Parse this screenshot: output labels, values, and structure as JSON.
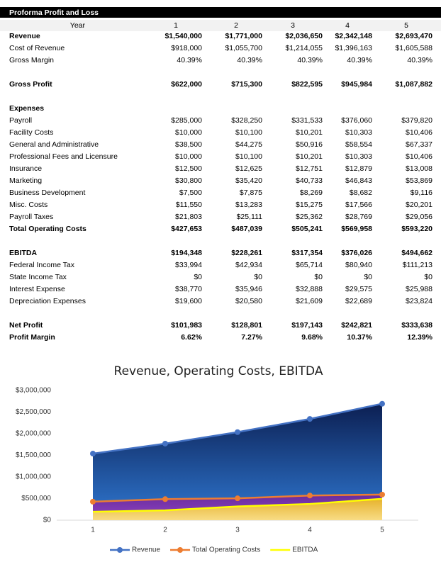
{
  "table": {
    "title": "Proforma Profit and Loss",
    "header": [
      "Year",
      "1",
      "2",
      "3",
      "4",
      "5"
    ],
    "sections": [
      {
        "rows": [
          {
            "bold": true,
            "cells": [
              "Revenue",
              "$1,540,000",
              "$1,771,000",
              "$2,036,650",
              "$2,342,148",
              "$2,693,470"
            ]
          },
          {
            "bold": false,
            "cells": [
              "Cost of Revenue",
              "$918,000",
              "$1,055,700",
              "$1,214,055",
              "$1,396,163",
              "$1,605,588"
            ]
          },
          {
            "bold": false,
            "cells": [
              "Gross Margin",
              "40.39%",
              "40.39%",
              "40.39%",
              "40.39%",
              "40.39%"
            ]
          }
        ]
      },
      {
        "rows": [
          {
            "bold": true,
            "cells": [
              "Gross Profit",
              "$622,000",
              "$715,300",
              "$822,595",
              "$945,984",
              "$1,087,882"
            ]
          }
        ]
      },
      {
        "rows": [
          {
            "bold": true,
            "cells": [
              "Expenses"
            ]
          },
          {
            "bold": false,
            "cells": [
              "Payroll",
              "$285,000",
              "$328,250",
              "$331,533",
              "$376,060",
              "$379,820"
            ]
          },
          {
            "bold": false,
            "cells": [
              "Facility Costs",
              "$10,000",
              "$10,100",
              "$10,201",
              "$10,303",
              "$10,406"
            ]
          },
          {
            "bold": false,
            "cells": [
              "General and Administrative",
              "$38,500",
              "$44,275",
              "$50,916",
              "$58,554",
              "$67,337"
            ]
          },
          {
            "bold": false,
            "cells": [
              "Professional Fees and Licensure",
              "$10,000",
              "$10,100",
              "$10,201",
              "$10,303",
              "$10,406"
            ]
          },
          {
            "bold": false,
            "cells": [
              "Insurance",
              "$12,500",
              "$12,625",
              "$12,751",
              "$12,879",
              "$13,008"
            ]
          },
          {
            "bold": false,
            "cells": [
              "Marketing",
              "$30,800",
              "$35,420",
              "$40,733",
              "$46,843",
              "$53,869"
            ]
          },
          {
            "bold": false,
            "cells": [
              "Business Development",
              "$7,500",
              "$7,875",
              "$8,269",
              "$8,682",
              "$9,116"
            ]
          },
          {
            "bold": false,
            "cells": [
              "Misc. Costs",
              "$11,550",
              "$13,283",
              "$15,275",
              "$17,566",
              "$20,201"
            ]
          },
          {
            "bold": false,
            "cells": [
              "Payroll Taxes",
              "$21,803",
              "$25,111",
              "$25,362",
              "$28,769",
              "$29,056"
            ]
          },
          {
            "bold": true,
            "cells": [
              "Total Operating Costs",
              "$427,653",
              "$487,039",
              "$505,241",
              "$569,958",
              "$593,220"
            ]
          }
        ]
      },
      {
        "rows": [
          {
            "bold": true,
            "cells": [
              "EBITDA",
              "$194,348",
              "$228,261",
              "$317,354",
              "$376,026",
              "$494,662"
            ]
          },
          {
            "bold": false,
            "cells": [
              "Federal Income Tax",
              "$33,994",
              "$42,934",
              "$65,714",
              "$80,940",
              "$111,213"
            ]
          },
          {
            "bold": false,
            "cells": [
              "State Income Tax",
              "$0",
              "$0",
              "$0",
              "$0",
              "$0"
            ]
          },
          {
            "bold": false,
            "cells": [
              "Interest Expense",
              "$38,770",
              "$35,946",
              "$32,888",
              "$29,575",
              "$25,988"
            ]
          },
          {
            "bold": false,
            "cells": [
              "Depreciation Expenses",
              "$19,600",
              "$20,580",
              "$21,609",
              "$22,689",
              "$23,824"
            ]
          }
        ]
      },
      {
        "rows": [
          {
            "bold": true,
            "cells": [
              "Net Profit",
              "$101,983",
              "$128,801",
              "$197,143",
              "$242,821",
              "$333,638"
            ]
          },
          {
            "bold": true,
            "cells": [
              "Profit Margin",
              "6.62%",
              "7.27%",
              "9.68%",
              "10.37%",
              "12.39%"
            ]
          }
        ]
      }
    ]
  },
  "chart_data": {
    "type": "area",
    "title": "Revenue, Operating Costs, EBITDA",
    "categories": [
      "1",
      "2",
      "3",
      "4",
      "5"
    ],
    "series": [
      {
        "name": "Revenue",
        "color": "#4472c4",
        "area_colors": [
          "#0c1f52",
          "#2f78d2"
        ],
        "markers": true,
        "values": [
          1540000,
          1771000,
          2036650,
          2342148,
          2693470
        ]
      },
      {
        "name": "Total Operating Costs",
        "color": "#ed7d31",
        "area_colors": [
          "#6a2c9c",
          "#8e44c4"
        ],
        "markers": true,
        "values": [
          427653,
          487039,
          505241,
          569958,
          593220
        ]
      },
      {
        "name": "EBITDA",
        "color": "#ffff00",
        "area_colors": [
          "#e6b22c",
          "#f8dc86"
        ],
        "markers": false,
        "values": [
          194348,
          228261,
          317354,
          376026,
          494662
        ]
      }
    ],
    "ylim": [
      0,
      3000000
    ],
    "yticks": [
      {
        "value": 0,
        "label": "$0"
      },
      {
        "value": 500000,
        "label": "$500,000"
      },
      {
        "value": 1000000,
        "label": "$1,000,000"
      },
      {
        "value": 1500000,
        "label": "$1,500,000"
      },
      {
        "value": 2000000,
        "label": "$2,000,000"
      },
      {
        "value": 2500000,
        "label": "$2,500,000"
      },
      {
        "value": 3000000,
        "label": "$3,000,000"
      }
    ],
    "legend": "bottom"
  }
}
